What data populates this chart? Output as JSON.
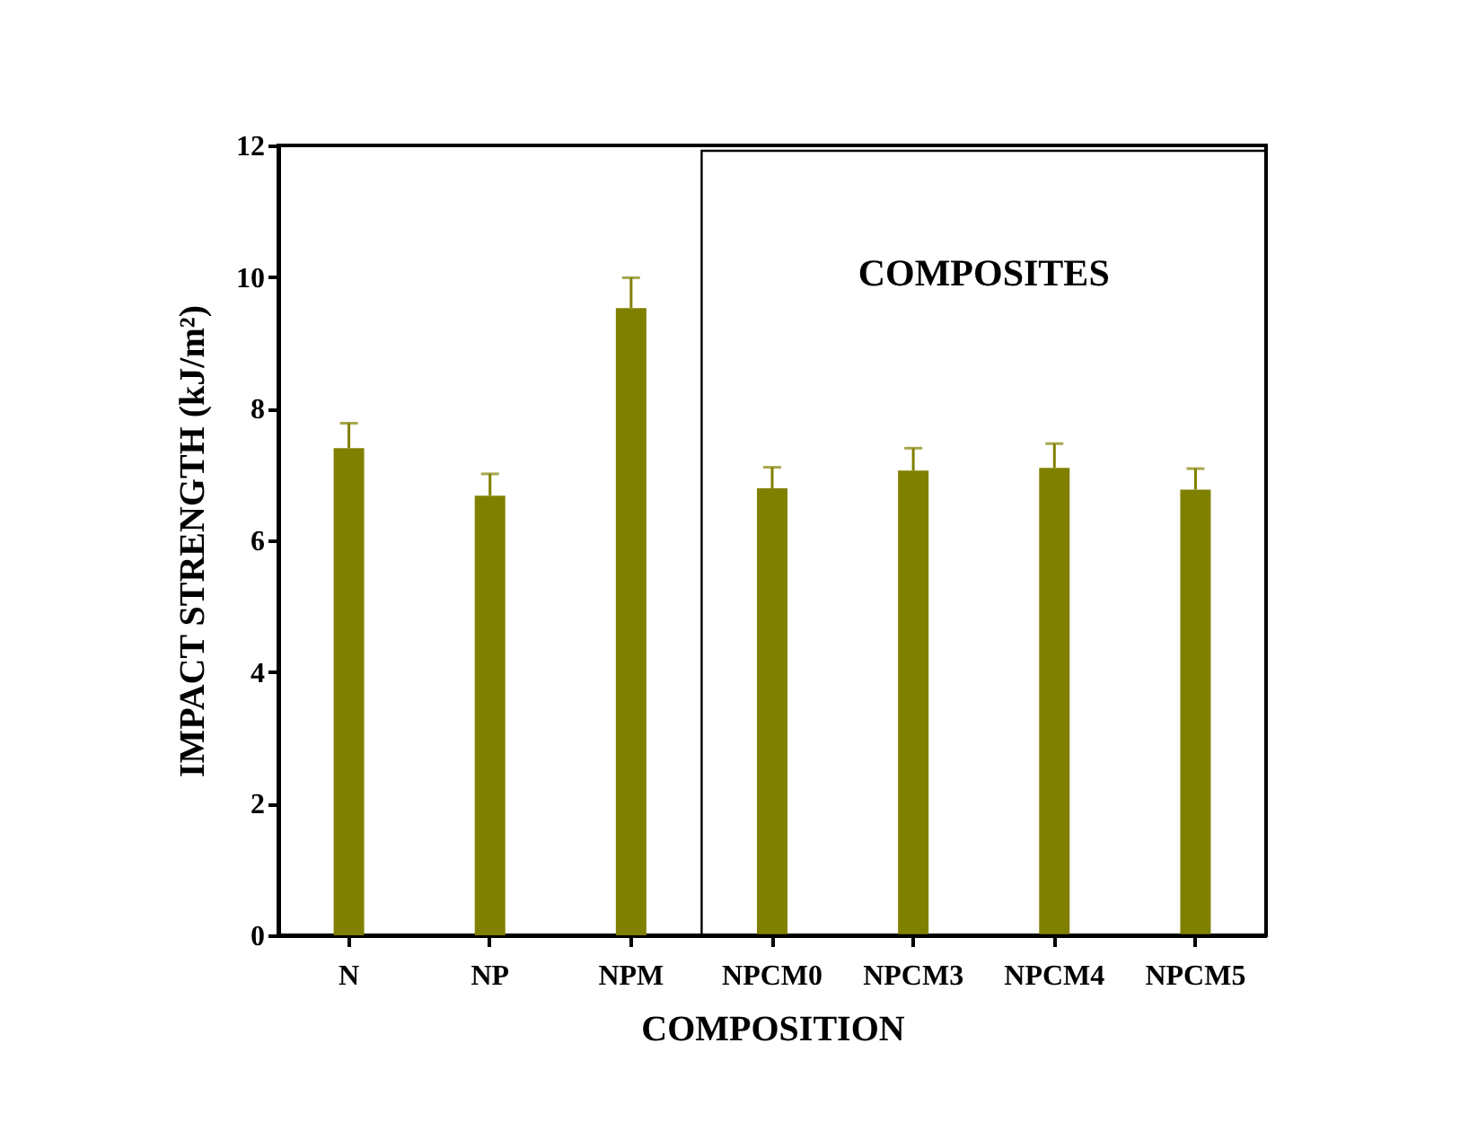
{
  "chart_data": {
    "type": "bar",
    "xlabel": "COMPOSITION",
    "ylabel": "IMPACT STRENGTH (kJ/m²)",
    "categories": [
      "N",
      "NP",
      "NPM",
      "NPCM0",
      "NPCM3",
      "NPCM4",
      "NPCM5"
    ],
    "values": [
      7.4,
      6.68,
      9.53,
      6.79,
      7.06,
      7.1,
      6.77
    ],
    "errors": [
      [
        7.4,
        7.78
      ],
      [
        6.68,
        7.01
      ],
      [
        9.53,
        9.99
      ],
      [
        6.79,
        7.11
      ],
      [
        7.06,
        7.4
      ],
      [
        7.1,
        7.47
      ],
      [
        6.77,
        7.09
      ]
    ],
    "color": "#808000",
    "ylim": [
      0,
      12
    ],
    "yticks": [
      0,
      2,
      4,
      6,
      8,
      10,
      12
    ],
    "annotations": [
      "COMPOSITES"
    ],
    "grid": false
  }
}
